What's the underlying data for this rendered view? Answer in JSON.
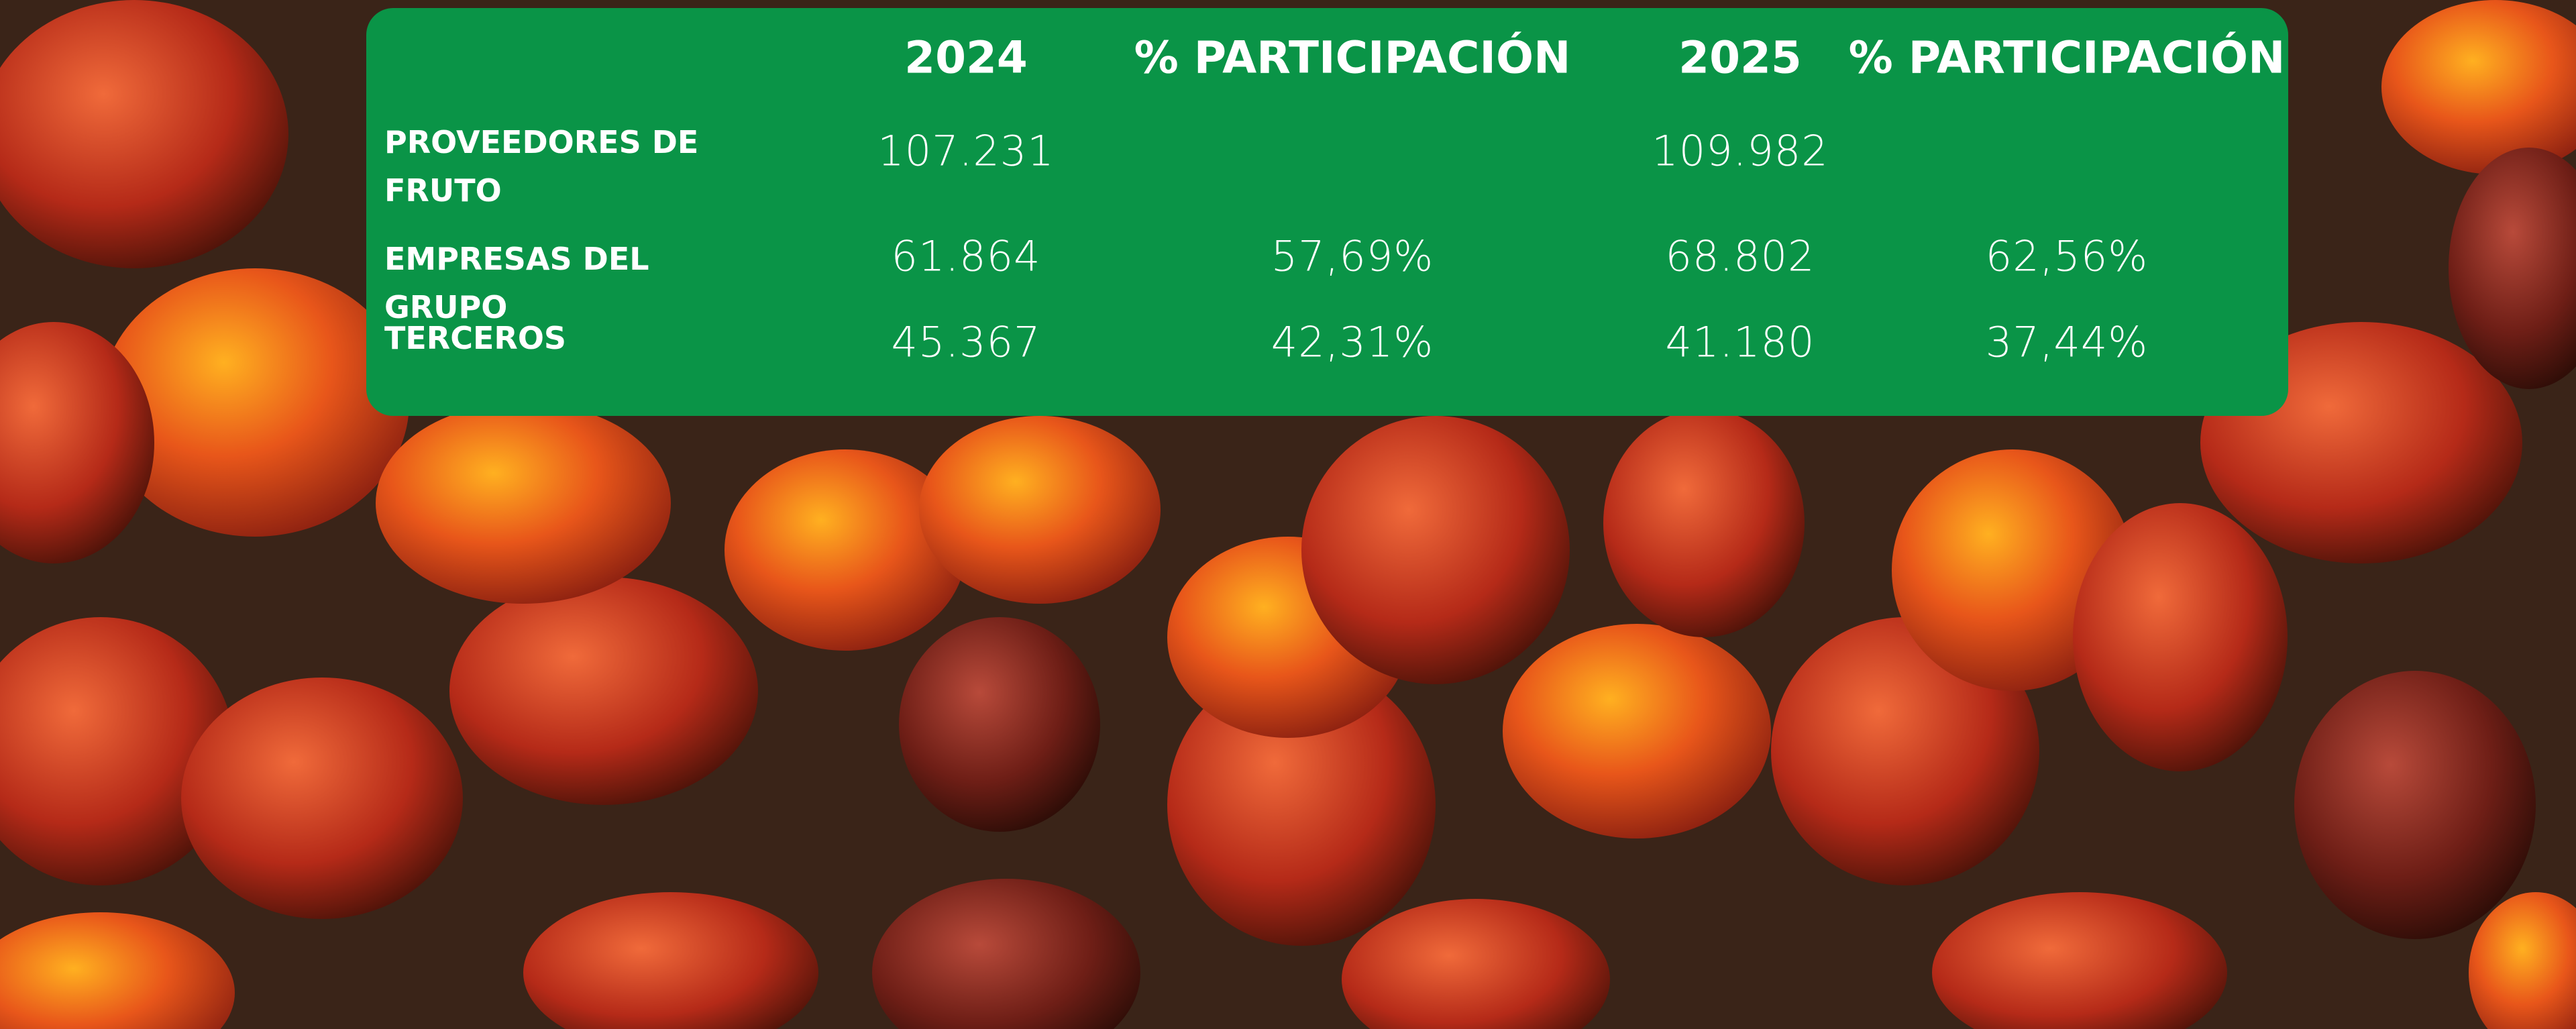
{
  "table": {
    "header": [
      null,
      "2024",
      "% PARTICIPACIÓN",
      "2025",
      "% PARTICIPACIÓN"
    ],
    "rows": [
      [
        "PROVEEDORES DE FRUTO",
        "107.231",
        null,
        "109.982",
        null
      ],
      [
        "EMPRESAS DEL GRUPO",
        "61.864",
        "57,69%",
        "68.802",
        "62,56%"
      ],
      [
        "TERCEROS",
        "45.367",
        "42,31%",
        "41.180",
        "37,44%"
      ]
    ]
  }
}
